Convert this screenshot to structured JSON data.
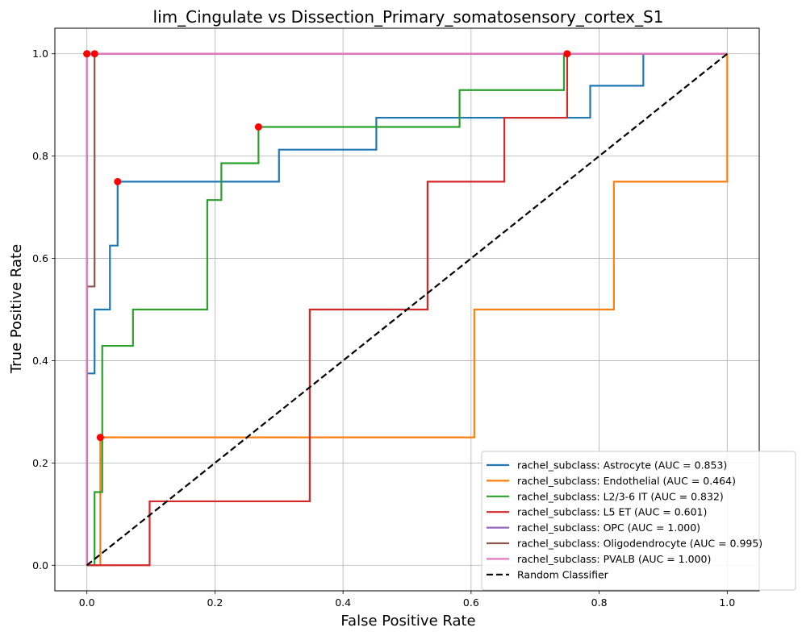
{
  "chart_data": {
    "type": "line",
    "title": "lim_Cingulate vs Dissection_Primary_somatosensory_cortex_S1",
    "xlabel": "False Positive Rate",
    "ylabel": "True Positive Rate",
    "xlim": [
      -0.05,
      1.05
    ],
    "ylim": [
      -0.05,
      1.05
    ],
    "xticks": [
      0.0,
      0.2,
      0.4,
      0.6,
      0.8,
      1.0
    ],
    "yticks": [
      0.0,
      0.2,
      0.4,
      0.6,
      0.8,
      1.0
    ],
    "xtick_labels": [
      "0.0",
      "0.2",
      "0.4",
      "0.6",
      "0.8",
      "1.0"
    ],
    "ytick_labels": [
      "0.0",
      "0.2",
      "0.4",
      "0.6",
      "0.8",
      "1.0"
    ],
    "grid": true,
    "legend_position": "lower-right",
    "series": [
      {
        "name": "rachel_subclass: Astrocyte (AUC = 0.853)",
        "color": "#1f77b4",
        "x": [
          0.0,
          0.0,
          0.0,
          0.012,
          0.012,
          0.036,
          0.036,
          0.048,
          0.048,
          0.3,
          0.3,
          0.452,
          0.452,
          0.786,
          0.786,
          0.869,
          0.869,
          1.0
        ],
        "y": [
          0.0,
          0.375,
          0.375,
          0.375,
          0.5,
          0.5,
          0.625,
          0.625,
          0.75,
          0.75,
          0.8125,
          0.8125,
          0.875,
          0.875,
          0.9375,
          0.9375,
          1.0,
          1.0
        ]
      },
      {
        "name": "rachel_subclass: Endothelial (AUC = 0.464)",
        "color": "#ff7f0e",
        "x": [
          0.0,
          0.0,
          0.021,
          0.021,
          0.605,
          0.605,
          0.823,
          0.823,
          1.0,
          1.0
        ],
        "y": [
          0.0,
          0.0,
          0.0,
          0.25,
          0.25,
          0.5,
          0.5,
          0.75,
          0.75,
          1.0
        ]
      },
      {
        "name": "rachel_subclass: L2/3-6 IT (AUC = 0.832)",
        "color": "#2ca02c",
        "x": [
          0.0,
          0.012,
          0.012,
          0.024,
          0.024,
          0.072,
          0.072,
          0.188,
          0.188,
          0.21,
          0.21,
          0.268,
          0.268,
          0.582,
          0.582,
          0.745,
          0.745,
          1.0
        ],
        "y": [
          0.0,
          0.0,
          0.143,
          0.143,
          0.429,
          0.429,
          0.5,
          0.5,
          0.714,
          0.714,
          0.786,
          0.786,
          0.857,
          0.857,
          0.929,
          0.929,
          1.0,
          1.0
        ]
      },
      {
        "name": "rachel_subclass: L5 ET (AUC = 0.601)",
        "color": "#d62728",
        "x": [
          0.0,
          0.098,
          0.098,
          0.348,
          0.348,
          0.532,
          0.532,
          0.652,
          0.652,
          0.75,
          0.75,
          1.0
        ],
        "y": [
          0.0,
          0.0,
          0.125,
          0.125,
          0.5,
          0.5,
          0.75,
          0.75,
          0.875,
          0.875,
          1.0,
          1.0
        ]
      },
      {
        "name": "rachel_subclass: OPC (AUC = 1.000)",
        "color": "#9467bd",
        "x": [
          0.0,
          0.0,
          1.0
        ],
        "y": [
          0.0,
          1.0,
          1.0
        ]
      },
      {
        "name": "rachel_subclass: Oligodendrocyte (AUC = 0.995)",
        "color": "#8c564b",
        "x": [
          0.0,
          0.0,
          0.012,
          0.012,
          1.0
        ],
        "y": [
          0.0,
          0.545,
          0.545,
          1.0,
          1.0
        ]
      },
      {
        "name": "rachel_subclass: PVALB (AUC = 1.000)",
        "color": "#e377c2",
        "x": [
          0.0,
          0.0,
          1.0
        ],
        "y": [
          0.0,
          1.0,
          1.0
        ]
      },
      {
        "name": "Random Classifier",
        "color": "#000000",
        "dashed": true,
        "x": [
          0.0,
          1.0
        ],
        "y": [
          0.0,
          1.0
        ]
      }
    ],
    "optimal_points": {
      "color": "#ff0000",
      "points": [
        {
          "x": 0.048,
          "y": 0.75
        },
        {
          "x": 0.021,
          "y": 0.25
        },
        {
          "x": 0.268,
          "y": 0.857
        },
        {
          "x": 0.75,
          "y": 1.0
        },
        {
          "x": 0.0,
          "y": 1.0
        },
        {
          "x": 0.012,
          "y": 1.0
        },
        {
          "x": 0.0,
          "y": 1.0
        }
      ]
    }
  }
}
